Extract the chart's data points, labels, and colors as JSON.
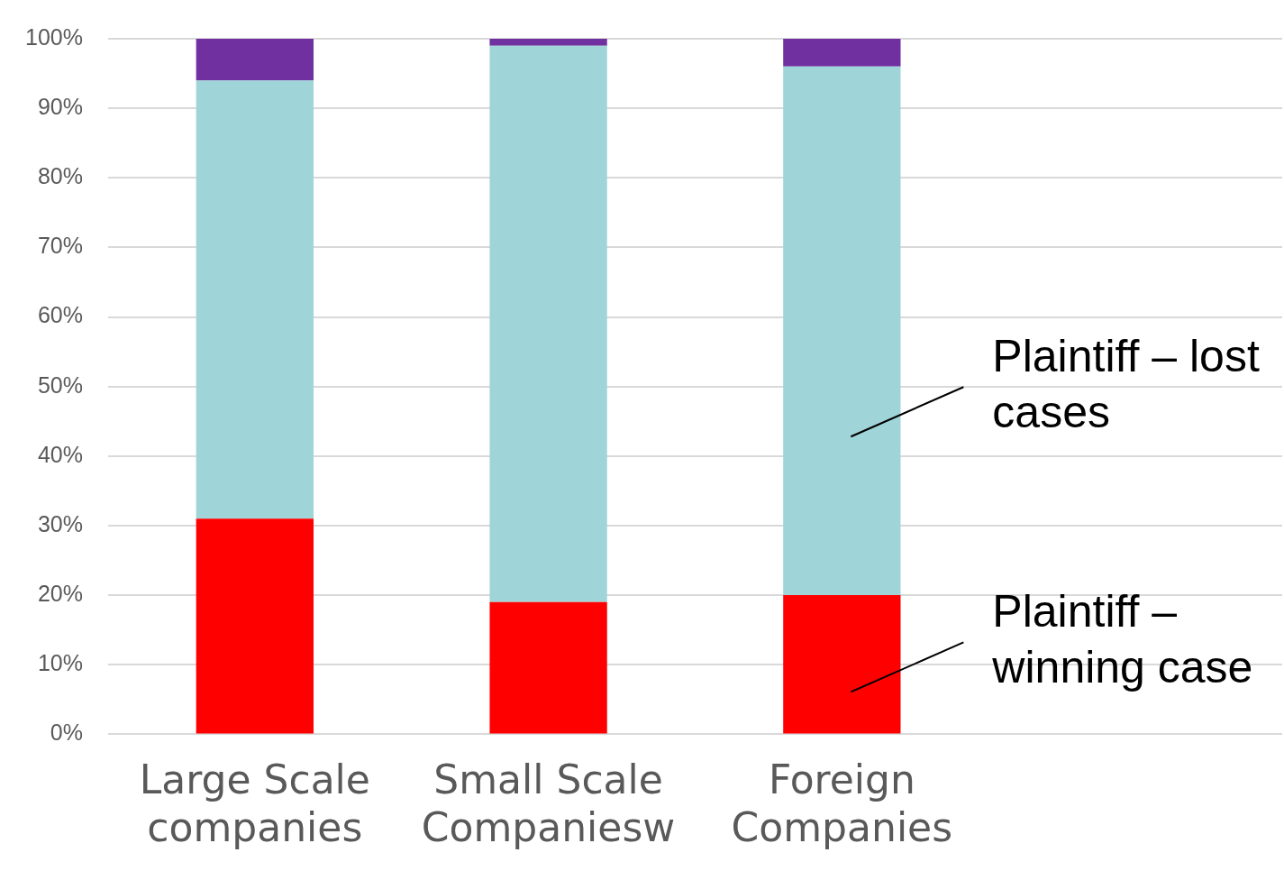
{
  "chart_data": {
    "type": "bar",
    "stacked": true,
    "categories": [
      "Large Scale companies",
      "Small Scale Companiesw",
      "Foreign Companies",
      null
    ],
    "series": [
      {
        "name": "Plaintiff – winning case",
        "color": "#ff0000",
        "values": [
          31,
          19,
          20,
          null
        ]
      },
      {
        "name": "Plaintiff – lost cases",
        "color": "#9fd4d8",
        "values": [
          63,
          80,
          76,
          null
        ]
      },
      {
        "color": "#7030a0",
        "values": [
          6,
          1,
          4,
          null
        ]
      }
    ],
    "ylim": [
      0,
      100
    ],
    "yticks": [
      {
        "value": 0,
        "label": "0%"
      },
      {
        "value": 10,
        "label": "10%"
      },
      {
        "value": 20,
        "label": "20%"
      },
      {
        "value": 30,
        "label": "30%"
      },
      {
        "value": 40,
        "label": "40%"
      },
      {
        "value": 50,
        "label": "50%"
      },
      {
        "value": 60,
        "label": "60%"
      },
      {
        "value": 70,
        "label": "70%"
      },
      {
        "value": 80,
        "label": "80%"
      },
      {
        "value": 90,
        "label": "90%"
      },
      {
        "value": 100,
        "label": "100%"
      }
    ],
    "grid": "y",
    "legend": false
  }
}
